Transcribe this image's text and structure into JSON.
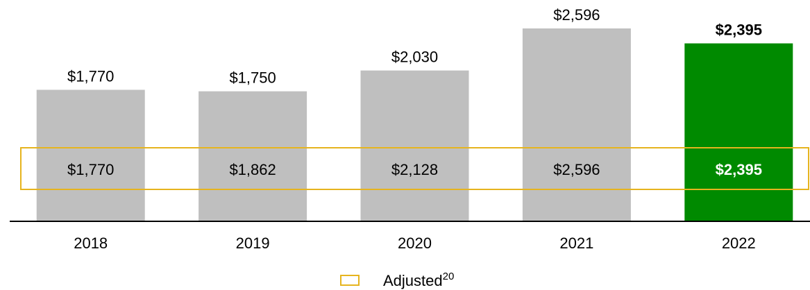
{
  "chart_data": {
    "type": "bar",
    "categories": [
      "2018",
      "2019",
      "2020",
      "2021",
      "2022"
    ],
    "values": [
      1770,
      1750,
      2030,
      2596,
      2395
    ],
    "value_labels": [
      "$1,770",
      "$1,750",
      "$2,030",
      "$2,596",
      "$2,395"
    ],
    "colors": [
      "#bfbfbf",
      "#bfbfbf",
      "#bfbfbf",
      "#bfbfbf",
      "#008a00"
    ],
    "bold": [
      false,
      false,
      false,
      false,
      true
    ],
    "adjusted": {
      "name": "Adjusted",
      "superscript": "20",
      "color": "#e6b41e",
      "values": [
        1770,
        1862,
        2128,
        2596,
        2395
      ],
      "value_labels": [
        "$1,770",
        "$1,862",
        "$2,128",
        "$2,596",
        "$2,395"
      ]
    }
  }
}
